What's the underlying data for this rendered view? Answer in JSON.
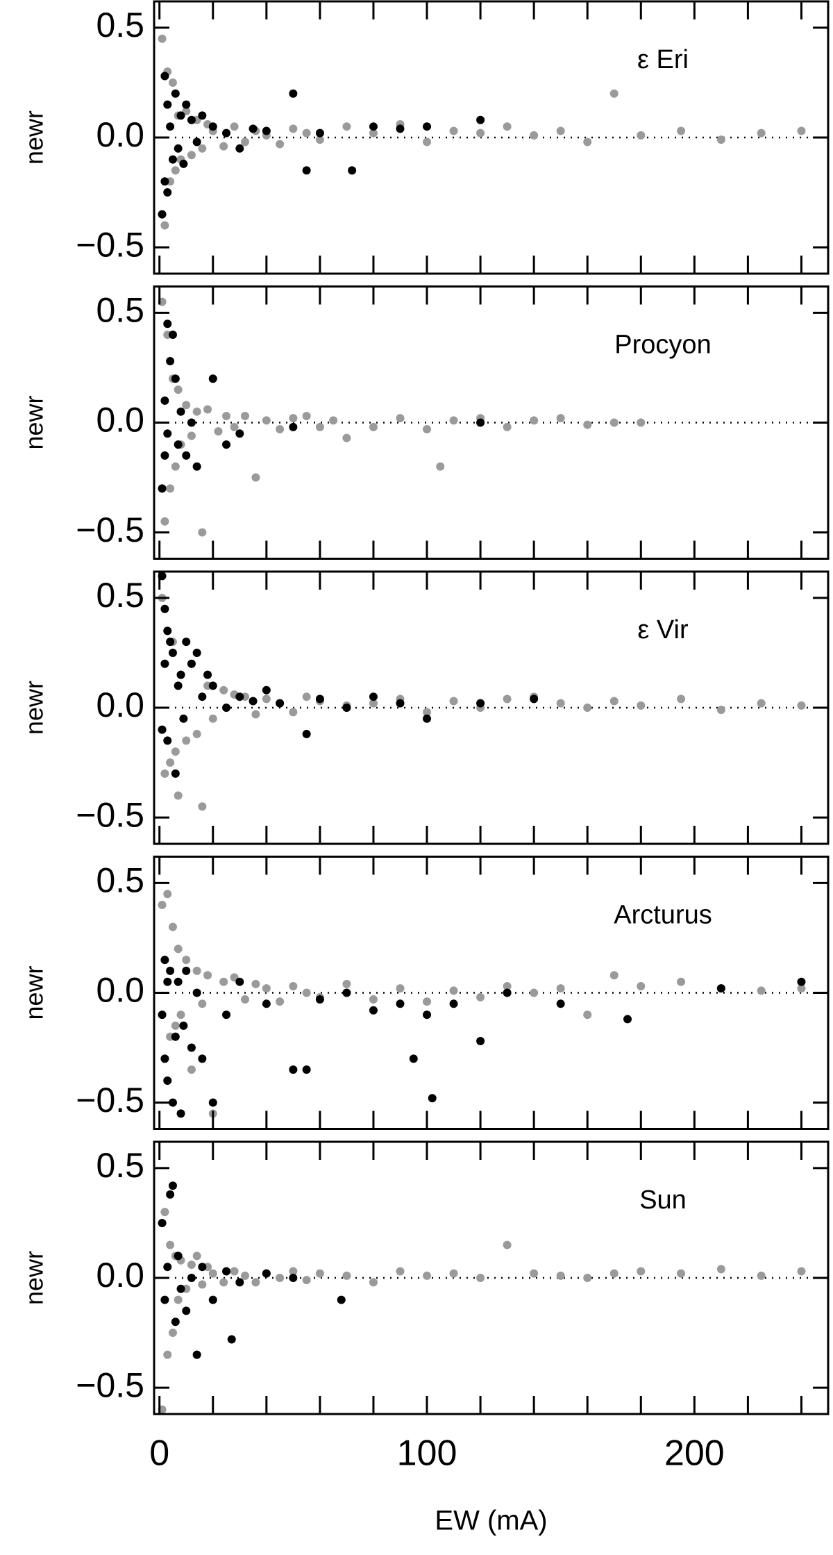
{
  "chart_data": [
    {
      "type": "scatter",
      "title": "ε Eri",
      "ylabel": "newr",
      "xlim": [
        -2,
        250
      ],
      "ylim": [
        -0.62,
        0.62
      ],
      "yticks": [
        0.5,
        {
          "value": 0,
          "label": "0.0"
        },
        {
          "value": -0.5,
          "label": "−0.5"
        }
      ],
      "xticks": [
        0,
        100,
        200
      ],
      "xminorticks": [
        20,
        40,
        60,
        80,
        120,
        140,
        160,
        180,
        220,
        240
      ],
      "hline": 0,
      "series": [
        {
          "color": "#9a9a9a",
          "x": [
            1,
            2,
            3,
            4,
            5,
            6,
            7,
            8,
            10,
            12,
            14,
            16,
            18,
            20,
            24,
            28,
            32,
            36,
            40,
            45,
            50,
            55,
            60,
            70,
            80,
            90,
            100,
            110,
            120,
            130,
            140,
            150,
            160,
            170,
            180,
            195,
            210,
            225,
            240
          ],
          "values": [
            0.45,
            -0.4,
            0.3,
            -0.2,
            0.25,
            -0.15,
            0.1,
            -0.1,
            0.12,
            -0.08,
            0.08,
            -0.05,
            0.06,
            0.03,
            -0.04,
            0.05,
            -0.02,
            0.03,
            0.01,
            -0.03,
            0.04,
            0.02,
            -0.01,
            0.05,
            0.02,
            0.06,
            -0.02,
            0.03,
            0.02,
            0.05,
            0.01,
            0.03,
            -0.02,
            0.2,
            0.01,
            0.03,
            -0.01,
            0.02,
            0.03
          ]
        },
        {
          "color": "#000000",
          "x": [
            1,
            2,
            2,
            3,
            3,
            4,
            5,
            6,
            7,
            8,
            9,
            10,
            12,
            14,
            16,
            20,
            25,
            30,
            35,
            40,
            50,
            55,
            60,
            72,
            80,
            90,
            100,
            120
          ],
          "values": [
            -0.35,
            0.28,
            -0.2,
            0.15,
            -0.25,
            0.05,
            -0.1,
            0.2,
            -0.05,
            0.1,
            -0.12,
            0.15,
            0.08,
            -0.02,
            0.1,
            0.05,
            0.02,
            -0.05,
            0.04,
            0.03,
            0.2,
            -0.15,
            0.02,
            -0.15,
            0.05,
            0.04,
            0.05,
            0.08
          ]
        }
      ]
    },
    {
      "type": "scatter",
      "title": "Procyon",
      "ylabel": "newr",
      "xlim": [
        -2,
        250
      ],
      "ylim": [
        -0.62,
        0.62
      ],
      "yticks": [
        0.5,
        {
          "value": 0,
          "label": "0.0"
        },
        {
          "value": -0.5,
          "label": "−0.5"
        }
      ],
      "xticks": [
        0,
        100,
        200
      ],
      "xminorticks": [
        20,
        40,
        60,
        80,
        120,
        140,
        160,
        180,
        220,
        240
      ],
      "hline": 0,
      "series": [
        {
          "color": "#9a9a9a",
          "x": [
            1,
            2,
            3,
            4,
            5,
            6,
            7,
            8,
            10,
            12,
            14,
            16,
            18,
            20,
            22,
            25,
            28,
            32,
            36,
            40,
            45,
            50,
            55,
            60,
            65,
            70,
            80,
            90,
            100,
            105,
            110,
            120,
            130,
            140,
            150,
            160,
            170,
            180
          ],
          "values": [
            0.55,
            -0.45,
            0.4,
            -0.3,
            0.2,
            -0.2,
            0.15,
            -0.1,
            0.08,
            -0.06,
            0.05,
            -0.5,
            0.06,
            0.2,
            -0.04,
            0.03,
            -0.02,
            0.03,
            -0.25,
            0.01,
            -0.03,
            0.02,
            0.03,
            -0.02,
            0.01,
            -0.07,
            -0.02,
            0.02,
            -0.03,
            -0.2,
            0.01,
            0.02,
            -0.02,
            0.01,
            0.02,
            -0.01,
            0.0,
            0.0
          ]
        },
        {
          "color": "#000000",
          "x": [
            1,
            2,
            2,
            3,
            3,
            4,
            5,
            6,
            7,
            8,
            10,
            12,
            14,
            20,
            25,
            30,
            50,
            120
          ],
          "values": [
            -0.3,
            0.1,
            -0.15,
            0.45,
            -0.05,
            0.28,
            0.4,
            0.2,
            -0.1,
            0.05,
            -0.15,
            0.0,
            -0.2,
            0.2,
            -0.1,
            -0.05,
            -0.02,
            0.0
          ]
        }
      ]
    },
    {
      "type": "scatter",
      "title": "ε Vir",
      "ylabel": "newr",
      "xlim": [
        -2,
        250
      ],
      "ylim": [
        -0.62,
        0.62
      ],
      "yticks": [
        0.5,
        {
          "value": 0,
          "label": "0.0"
        },
        {
          "value": -0.5,
          "label": "−0.5"
        }
      ],
      "xticks": [
        0,
        100,
        200
      ],
      "xminorticks": [
        20,
        40,
        60,
        80,
        120,
        140,
        160,
        180,
        220,
        240
      ],
      "hline": 0,
      "series": [
        {
          "color": "#9a9a9a",
          "x": [
            1,
            2,
            3,
            4,
            5,
            6,
            7,
            8,
            10,
            12,
            14,
            16,
            18,
            20,
            24,
            28,
            32,
            36,
            40,
            45,
            50,
            55,
            60,
            70,
            80,
            90,
            100,
            110,
            120,
            130,
            140,
            150,
            160,
            170,
            180,
            195,
            210,
            225,
            240
          ],
          "values": [
            0.5,
            -0.3,
            0.35,
            -0.25,
            0.3,
            -0.2,
            -0.4,
            0.15,
            -0.15,
            0.2,
            -0.12,
            -0.45,
            0.1,
            -0.05,
            0.08,
            0.06,
            0.05,
            -0.03,
            0.04,
            0.02,
            -0.02,
            0.05,
            0.03,
            0.01,
            0.02,
            0.04,
            -0.02,
            0.03,
            0.0,
            0.04,
            0.05,
            0.02,
            0.0,
            0.03,
            0.01,
            0.04,
            -0.01,
            0.02,
            0.01
          ]
        },
        {
          "color": "#000000",
          "x": [
            1,
            1,
            2,
            2,
            3,
            3,
            4,
            5,
            6,
            7,
            8,
            9,
            10,
            12,
            14,
            16,
            18,
            20,
            25,
            30,
            35,
            40,
            45,
            55,
            60,
            70,
            80,
            90,
            100,
            120,
            140
          ],
          "values": [
            0.6,
            -0.1,
            0.45,
            0.2,
            0.35,
            -0.15,
            0.3,
            0.25,
            -0.3,
            0.1,
            0.15,
            -0.05,
            0.3,
            0.2,
            0.25,
            0.05,
            0.15,
            0.1,
            0.0,
            0.05,
            0.03,
            0.08,
            0.02,
            -0.12,
            0.04,
            0.0,
            0.05,
            0.02,
            -0.05,
            0.02,
            0.04
          ]
        }
      ]
    },
    {
      "type": "scatter",
      "title": "Arcturus",
      "ylabel": "newr",
      "xlim": [
        -2,
        250
      ],
      "ylim": [
        -0.62,
        0.62
      ],
      "yticks": [
        0.5,
        {
          "value": 0,
          "label": "0.0"
        },
        {
          "value": -0.5,
          "label": "−0.5"
        }
      ],
      "xticks": [
        0,
        100,
        200
      ],
      "xminorticks": [
        20,
        40,
        60,
        80,
        120,
        140,
        160,
        180,
        220,
        240
      ],
      "hline": 0,
      "series": [
        {
          "color": "#9a9a9a",
          "x": [
            1,
            2,
            3,
            4,
            5,
            6,
            7,
            8,
            10,
            12,
            14,
            16,
            18,
            20,
            24,
            28,
            32,
            36,
            40,
            45,
            50,
            55,
            60,
            70,
            80,
            90,
            100,
            110,
            120,
            130,
            140,
            150,
            160,
            170,
            180,
            195,
            210,
            225,
            240
          ],
          "values": [
            0.4,
            -0.3,
            0.45,
            -0.2,
            0.3,
            -0.15,
            0.2,
            -0.1,
            0.15,
            -0.35,
            0.1,
            -0.05,
            0.08,
            -0.55,
            0.05,
            0.07,
            -0.03,
            0.04,
            0.02,
            -0.04,
            0.03,
            0.0,
            -0.02,
            0.04,
            -0.03,
            0.02,
            -0.04,
            0.01,
            -0.02,
            0.03,
            0.0,
            0.02,
            -0.1,
            0.08,
            0.03,
            0.05,
            0.02,
            0.01,
            0.02
          ]
        },
        {
          "color": "#000000",
          "x": [
            1,
            2,
            2,
            3,
            3,
            4,
            5,
            6,
            7,
            8,
            9,
            10,
            12,
            14,
            16,
            20,
            25,
            30,
            40,
            50,
            55,
            60,
            70,
            80,
            90,
            95,
            100,
            102,
            110,
            120,
            130,
            150,
            175,
            210,
            240
          ],
          "values": [
            -0.1,
            0.15,
            -0.3,
            0.05,
            -0.4,
            0.1,
            -0.5,
            -0.2,
            0.05,
            -0.55,
            -0.15,
            0.1,
            -0.25,
            0.0,
            -0.3,
            -0.5,
            -0.1,
            0.05,
            -0.05,
            -0.35,
            -0.35,
            -0.03,
            0.0,
            -0.08,
            -0.05,
            -0.3,
            -0.1,
            -0.48,
            -0.05,
            -0.22,
            0.0,
            -0.05,
            -0.12,
            0.02,
            0.05
          ]
        }
      ]
    },
    {
      "type": "scatter",
      "title": "Sun",
      "ylabel": "newr",
      "xlabel": "EW (mA)",
      "xlim": [
        -2,
        250
      ],
      "ylim": [
        -0.62,
        0.62
      ],
      "yticks": [
        0.5,
        {
          "value": 0,
          "label": "0.0"
        },
        {
          "value": -0.5,
          "label": "−0.5"
        }
      ],
      "xticks": [
        0,
        100,
        200
      ],
      "xminorticks": [
        20,
        40,
        60,
        80,
        120,
        140,
        160,
        180,
        220,
        240
      ],
      "hline": 0,
      "series": [
        {
          "color": "#9a9a9a",
          "x": [
            1,
            2,
            3,
            4,
            5,
            6,
            7,
            8,
            10,
            12,
            14,
            16,
            18,
            20,
            24,
            28,
            32,
            36,
            40,
            45,
            50,
            55,
            60,
            70,
            80,
            90,
            100,
            110,
            120,
            130,
            140,
            150,
            160,
            170,
            180,
            195,
            210,
            225,
            240
          ],
          "values": [
            -0.6,
            0.3,
            -0.35,
            0.15,
            -0.25,
            0.1,
            -0.1,
            0.08,
            -0.05,
            0.06,
            0.1,
            -0.03,
            0.05,
            0.02,
            -0.02,
            0.03,
            0.01,
            -0.02,
            0.02,
            0.0,
            0.03,
            -0.01,
            0.02,
            0.01,
            -0.02,
            0.03,
            0.01,
            0.02,
            0.0,
            0.15,
            0.02,
            0.01,
            0.0,
            0.02,
            0.03,
            0.02,
            0.04,
            0.01,
            0.03
          ]
        },
        {
          "color": "#000000",
          "x": [
            1,
            2,
            3,
            4,
            5,
            6,
            7,
            8,
            10,
            12,
            14,
            16,
            20,
            25,
            27,
            30,
            40,
            50,
            68
          ],
          "values": [
            0.25,
            -0.1,
            0.05,
            0.38,
            0.42,
            -0.2,
            0.1,
            -0.05,
            -0.15,
            0.0,
            -0.35,
            0.05,
            -0.1,
            0.03,
            -0.28,
            -0.02,
            0.02,
            0.0,
            -0.1
          ]
        }
      ]
    }
  ]
}
